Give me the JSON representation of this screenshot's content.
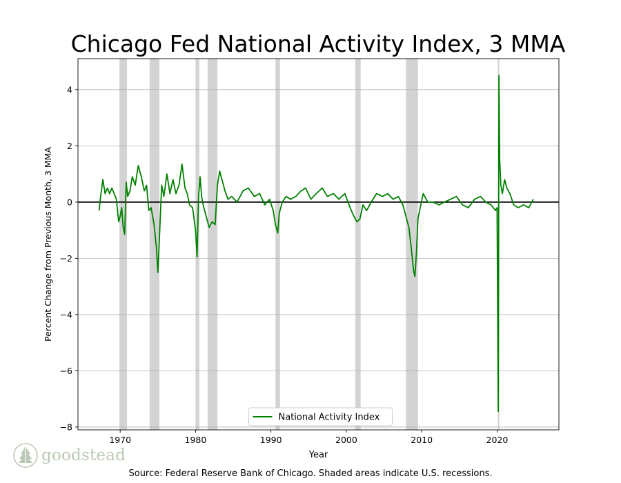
{
  "brand": {
    "name": "goodstead",
    "logo_icon": "tree-icon",
    "color": "#b9c8b4"
  },
  "source_note": "Source: Federal Reserve Bank of Chicago. Shaded areas indicate U.S. recessions.",
  "chart_data": {
    "type": "line",
    "title": "Chicago Fed National Activity Index, 3 MMA",
    "xlabel": "Year",
    "ylabel": "Percent Change from Previous Month, 3 MMA",
    "xlim": [
      1964.4,
      2028.2
    ],
    "ylim": [
      -8.1,
      5.1
    ],
    "x_ticks": [
      1970,
      1980,
      1990,
      2000,
      2010,
      2020
    ],
    "y_ticks": [
      4,
      2,
      0,
      -2,
      -4,
      -6,
      -8
    ],
    "x_tick_labels": [
      "1970",
      "1980",
      "1990",
      "2000",
      "2010",
      "2020"
    ],
    "y_tick_labels": [
      "4",
      "2",
      "0",
      "−2",
      "−4",
      "−6",
      "−8"
    ],
    "grid": "horizontal",
    "zero_line": true,
    "line_color": "#008000",
    "recession_color": "#d3d3d3",
    "legend": {
      "position": "bottom-center"
    },
    "recessions": [
      [
        1969.9,
        1970.9
      ],
      [
        1973.9,
        1975.2
      ],
      [
        1980.0,
        1980.5
      ],
      [
        1981.6,
        1982.9
      ],
      [
        1990.6,
        1991.2
      ],
      [
        2001.2,
        2001.9
      ],
      [
        2007.9,
        2009.5
      ],
      [
        2020.1,
        2020.3
      ]
    ],
    "series": [
      {
        "name": "National Activity Index",
        "x": [
          1967.2,
          1967.4,
          1967.7,
          1968.0,
          1968.3,
          1968.6,
          1968.9,
          1969.2,
          1969.5,
          1969.8,
          1970.0,
          1970.2,
          1970.4,
          1970.6,
          1970.8,
          1971.0,
          1971.3,
          1971.6,
          1972.0,
          1972.4,
          1972.8,
          1973.2,
          1973.5,
          1973.8,
          1974.1,
          1974.5,
          1974.8,
          1975.0,
          1975.2,
          1975.5,
          1975.8,
          1976.2,
          1976.6,
          1977.0,
          1977.4,
          1977.8,
          1978.2,
          1978.6,
          1978.9,
          1979.2,
          1979.6,
          1980.0,
          1980.2,
          1980.4,
          1980.6,
          1980.8,
          1981.0,
          1981.4,
          1981.8,
          1982.2,
          1982.6,
          1982.9,
          1983.2,
          1983.5,
          1983.9,
          1984.3,
          1984.8,
          1985.5,
          1986.3,
          1987.0,
          1987.8,
          1988.5,
          1989.2,
          1989.8,
          1990.3,
          1990.6,
          1990.9,
          1991.1,
          1991.5,
          1992.0,
          1992.6,
          1993.3,
          1994.0,
          1994.6,
          1995.3,
          1996.0,
          1996.8,
          1997.5,
          1998.3,
          1999.0,
          1999.8,
          2000.5,
          2001.0,
          2001.4,
          2001.8,
          2002.2,
          2002.7,
          2003.3,
          2004.0,
          2004.8,
          2005.5,
          2006.2,
          2006.9,
          2007.5,
          2008.0,
          2008.3,
          2008.6,
          2008.9,
          2009.1,
          2009.3,
          2009.5,
          2009.8,
          2010.2,
          2010.8,
          2011.5,
          2012.3,
          2013.0,
          2013.8,
          2014.6,
          2015.4,
          2016.2,
          2017.0,
          2017.8,
          2018.5,
          2019.2,
          2019.8,
          2020.0,
          2020.15,
          2020.25,
          2020.35,
          2020.5,
          2020.7,
          2021.0,
          2021.3,
          2021.7,
          2022.2,
          2022.8,
          2023.5,
          2024.2,
          2024.8
        ],
        "y": [
          -0.3,
          0.2,
          0.8,
          0.3,
          0.5,
          0.3,
          0.5,
          0.3,
          0.1,
          -0.7,
          -0.5,
          -0.2,
          -0.9,
          -1.15,
          0.7,
          0.2,
          0.4,
          0.9,
          0.6,
          1.3,
          0.9,
          0.4,
          0.6,
          -0.3,
          -0.2,
          -0.8,
          -1.6,
          -2.5,
          -1.3,
          0.6,
          0.2,
          1.0,
          0.3,
          0.8,
          0.3,
          0.6,
          1.35,
          0.5,
          0.3,
          -0.1,
          -0.2,
          -1.0,
          -1.95,
          0.2,
          0.9,
          0.2,
          -0.1,
          -0.5,
          -0.9,
          -0.7,
          -0.8,
          0.6,
          1.1,
          0.8,
          0.4,
          0.1,
          0.2,
          0.0,
          0.4,
          0.5,
          0.2,
          0.3,
          -0.1,
          0.1,
          -0.3,
          -0.8,
          -1.1,
          -0.4,
          0.0,
          0.2,
          0.1,
          0.2,
          0.4,
          0.5,
          0.1,
          0.3,
          0.5,
          0.2,
          0.3,
          0.1,
          0.3,
          -0.2,
          -0.5,
          -0.7,
          -0.6,
          -0.1,
          -0.3,
          0.0,
          0.3,
          0.2,
          0.3,
          0.1,
          0.2,
          -0.1,
          -0.6,
          -0.9,
          -1.6,
          -2.4,
          -2.65,
          -1.8,
          -0.6,
          -0.2,
          0.3,
          0.0,
          0.0,
          -0.1,
          0.0,
          0.1,
          0.2,
          -0.1,
          -0.2,
          0.1,
          0.2,
          0.0,
          -0.1,
          -0.3,
          -0.2,
          -7.45,
          4.5,
          1.5,
          0.6,
          0.3,
          0.8,
          0.5,
          0.3,
          -0.1,
          -0.2,
          -0.1,
          -0.2,
          0.1
        ]
      }
    ]
  }
}
